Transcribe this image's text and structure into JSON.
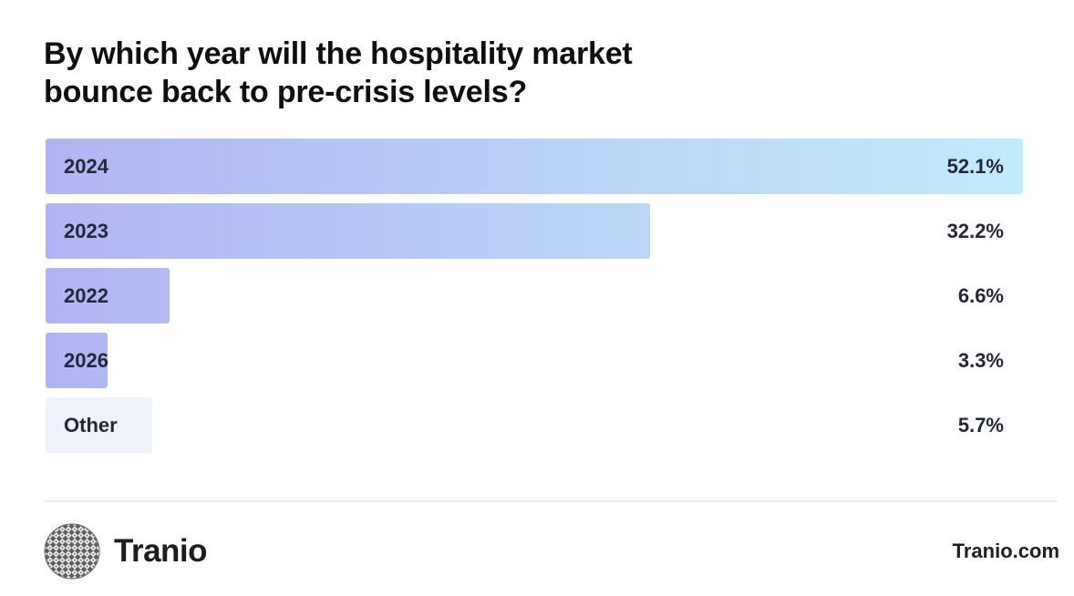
{
  "title_lines": [
    "By which year will the hospitality market",
    "bounce back to pre-crisis levels?"
  ],
  "chart_data": {
    "type": "bar",
    "orientation": "horizontal",
    "title": "By which year will the hospitality market bounce back to pre-crisis levels?",
    "categories": [
      "2024",
      "2023",
      "2022",
      "2026",
      "Other"
    ],
    "values": [
      52.1,
      32.2,
      6.6,
      3.3,
      5.7
    ],
    "value_labels": [
      "52.1%",
      "32.2%",
      "6.6%",
      "3.3%",
      "5.7%"
    ],
    "bar_scale_max": 52.1,
    "xlabel": "",
    "ylabel": "",
    "grid": false,
    "legend": false,
    "value_label_position": "right-aligned-column"
  },
  "colors": {
    "bar_gradient_start": "#b1b4f2",
    "bar_gradient_end": "#c1ecf9",
    "other_bar": "#edf2fb",
    "label_text": "#23283a",
    "title_text": "#0f0f10",
    "divider": "#ededed",
    "logo_gray": "#5f5f61"
  },
  "footer": {
    "brand": "Tranio",
    "website": "Tranio.com"
  }
}
